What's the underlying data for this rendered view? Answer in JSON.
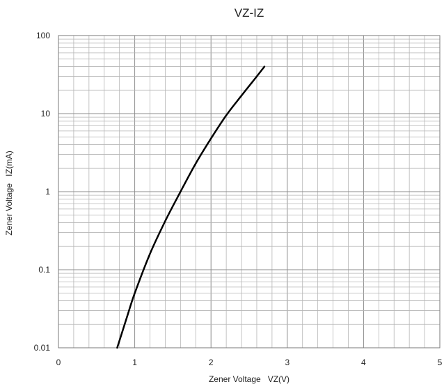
{
  "chart_data": {
    "type": "line",
    "title": "VZ-IZ",
    "xlabel": "Zener Voltage   VZ(V)",
    "ylabel": "Zener Voltage   IZ(mA)",
    "xlim": [
      0,
      5
    ],
    "ylim": [
      0.01,
      100
    ],
    "yscale": "log",
    "grid": true,
    "x_ticks": [
      "0",
      "1",
      "2",
      "3",
      "4",
      "5"
    ],
    "y_ticks": [
      "0.01",
      "0.1",
      "1",
      "10",
      "100"
    ],
    "series": [
      {
        "x": [
          0.77,
          0.9,
          1.0,
          1.2,
          1.4,
          1.6,
          1.8,
          2.0,
          2.2,
          2.4,
          2.6,
          2.7
        ],
        "y": [
          0.01,
          0.025,
          0.05,
          0.16,
          0.42,
          1.0,
          2.3,
          4.8,
          9.5,
          17,
          30,
          40
        ],
        "color": "#000000"
      }
    ]
  }
}
